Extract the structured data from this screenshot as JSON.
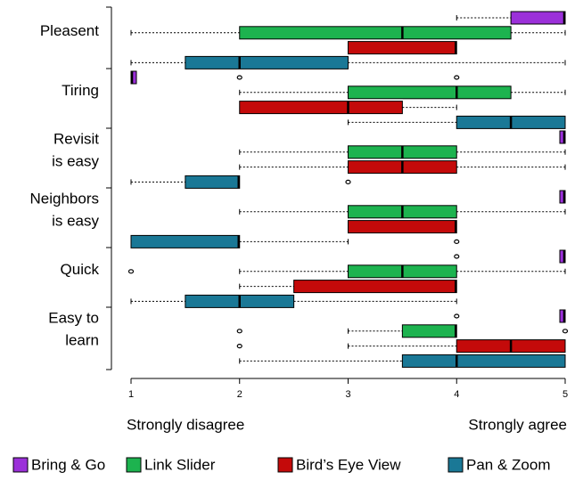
{
  "chart_data": {
    "type": "boxplot",
    "categories": [
      [
        "Pleasent"
      ],
      [
        "Tiring"
      ],
      [
        "Revisit",
        "is easy"
      ],
      [
        "Neighbors",
        "is easy"
      ],
      [
        "Quick"
      ],
      [
        "Easy to",
        "learn"
      ]
    ],
    "xlim": [
      1,
      5
    ],
    "xticks": [
      1,
      2,
      3,
      4,
      5
    ],
    "x_label_left": "Strongly disagree",
    "x_label_right": "Strongly agree",
    "series": [
      {
        "name": "Bring & Go",
        "color": "#9b30d9",
        "values": [
          {
            "min": 4,
            "q1": 4.5,
            "median": 5,
            "q3": 5,
            "max": 5,
            "outliers": []
          },
          {
            "min": 1,
            "q1": 1,
            "median": 1,
            "q3": 1,
            "max": 1,
            "outliers": [
              2,
              4
            ]
          },
          {
            "min": 5,
            "q1": 5,
            "median": 5,
            "q3": 5,
            "max": 5,
            "outliers": []
          },
          {
            "min": 5,
            "q1": 5,
            "median": 5,
            "q3": 5,
            "max": 5,
            "outliers": []
          },
          {
            "min": 5,
            "q1": 5,
            "median": 5,
            "q3": 5,
            "max": 5,
            "outliers": [
              4
            ]
          },
          {
            "min": 5,
            "q1": 5,
            "median": 5,
            "q3": 5,
            "max": 5,
            "outliers": [
              4
            ]
          }
        ]
      },
      {
        "name": "Link Slider",
        "color": "#1db34f",
        "values": [
          {
            "min": 1,
            "q1": 2,
            "median": 3.5,
            "q3": 4.5,
            "max": 5,
            "outliers": []
          },
          {
            "min": 2,
            "q1": 3,
            "median": 4,
            "q3": 4.5,
            "max": 5,
            "outliers": []
          },
          {
            "min": 2,
            "q1": 3,
            "median": 3.5,
            "q3": 4,
            "max": 5,
            "outliers": []
          },
          {
            "min": 2,
            "q1": 3,
            "median": 3.5,
            "q3": 4,
            "max": 5,
            "outliers": []
          },
          {
            "min": 2,
            "q1": 3,
            "median": 3.5,
            "q3": 4,
            "max": 5,
            "outliers": [
              1
            ]
          },
          {
            "min": 3,
            "q1": 3.5,
            "median": 4,
            "q3": 4,
            "max": 4,
            "outliers": [
              2,
              5
            ]
          }
        ]
      },
      {
        "name": "Bird’s Eye View",
        "color": "#c40a0a",
        "values": [
          {
            "min": 3,
            "q1": 3,
            "median": 4,
            "q3": 4,
            "max": 4,
            "outliers": []
          },
          {
            "min": 2,
            "q1": 2,
            "median": 3,
            "q3": 3.5,
            "max": 4,
            "outliers": []
          },
          {
            "min": 2,
            "q1": 3,
            "median": 3.5,
            "q3": 4,
            "max": 5,
            "outliers": []
          },
          {
            "min": 3,
            "q1": 3,
            "median": 4,
            "q3": 4,
            "max": 4,
            "outliers": []
          },
          {
            "min": 2,
            "q1": 2.5,
            "median": 4,
            "q3": 4,
            "max": 4,
            "outliers": []
          },
          {
            "min": 3,
            "q1": 4,
            "median": 4.5,
            "q3": 5,
            "max": 5,
            "outliers": [
              2
            ]
          }
        ]
      },
      {
        "name": "Pan & Zoom",
        "color": "#1a7896",
        "values": [
          {
            "min": 1,
            "q1": 1.5,
            "median": 2,
            "q3": 3,
            "max": 5,
            "outliers": []
          },
          {
            "min": 3,
            "q1": 4,
            "median": 4.5,
            "q3": 5,
            "max": 5,
            "outliers": []
          },
          {
            "min": 1,
            "q1": 1.5,
            "median": 2,
            "q3": 2,
            "max": 2,
            "outliers": [
              3
            ]
          },
          {
            "min": 1,
            "q1": 1,
            "median": 2,
            "q3": 2,
            "max": 3,
            "outliers": [
              4
            ]
          },
          {
            "min": 1,
            "q1": 1.5,
            "median": 2,
            "q3": 2.5,
            "max": 4,
            "outliers": []
          },
          {
            "min": 2,
            "q1": 3.5,
            "median": 4,
            "q3": 5,
            "max": 5,
            "outliers": []
          }
        ]
      }
    ]
  }
}
